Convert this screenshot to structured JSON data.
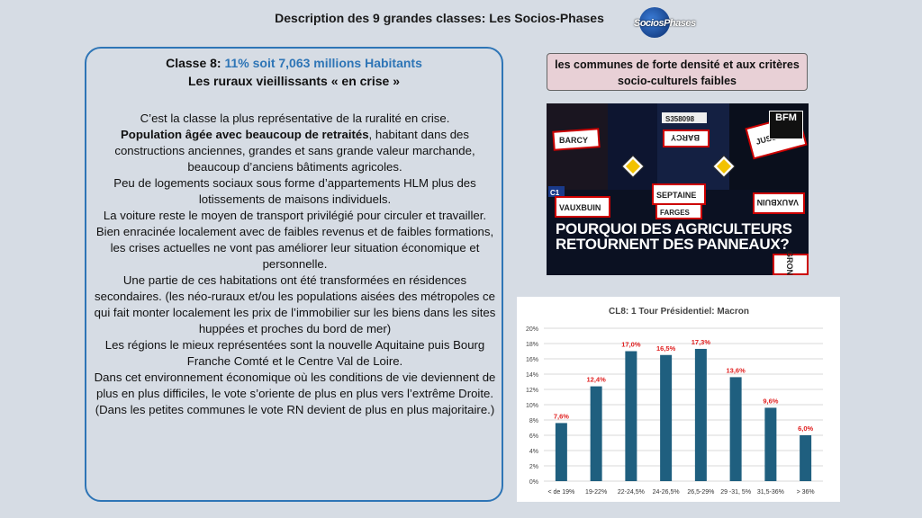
{
  "header": {
    "title": "Description  des  9 grandes  classes:  Les Socios-Phases"
  },
  "logo": {
    "text": "SociosPhases"
  },
  "panel": {
    "title_prefix": "Classe 8: ",
    "title_highlight": "11% soit 7,063 millions Habitants",
    "subtitle": "Les ruraux  vieillissants  « en crise »",
    "p1": "C’est la classe la plus représentative de la ruralité en crise.",
    "p2_bold": "Population âgée avec beaucoup de retraités",
    "p2_rest": ", habitant dans des constructions anciennes, grandes et sans grande valeur marchande, beaucoup d’anciens bâtiments agricoles.",
    "p3": "Peu de logements sociaux sous forme d’appartements HLM plus des lotissements de maisons individuels.",
    "p4": "La voiture reste le moyen de transport privilégié pour circuler et travailler.",
    "p5": "Bien enracinée localement avec de faibles revenus et de faibles formations, les crises actuelles ne vont pas améliorer leur situation économique et personnelle.",
    "p6": "Une partie de ces habitations ont été transformées en résidences secondaires. (les néo-ruraux et/ou les populations aisées des métropoles ce qui fait monter localement les prix de l’immobilier sur les biens dans les sites huppées et proches du bord de mer)",
    "p7": "Les régions le mieux représentées sont la nouvelle Aquitaine puis Bourg Franche Comté et le Centre Val de Loire.",
    "p8": "Dans cet environnement économique où les conditions de vie deviennent de plus en plus difficiles, le vote s’oriente de plus en plus vers l’extrême Droite.",
    "p9": "(Dans les petites communes le vote RN devient de plus en plus majoritaire.)"
  },
  "pinkbox": {
    "text": "les communes de forte densité et aux critères socio-culturels faibles"
  },
  "photo": {
    "headline": "POURQUOI DES AGRICULTEURS RETOURNENT DES PANNEAUX?",
    "badge": "BFM",
    "sign_barcy": "BARCY",
    "sign_fresnes": "FARGES",
    "sign_vauxbuin": "VAUXBUIN",
    "sign_septaine": "SEPTAINE",
    "sign_jussy": "JUSSY",
    "sign_gron": "GRON",
    "sign_c1": "C1",
    "sign_d": "S358098"
  },
  "chart_data": {
    "type": "bar",
    "title": "CL8: 1 Tour Présidentiel: Macron",
    "categories": [
      "< de 19%",
      "19-22%",
      "22-24,5%",
      "24-26,5%",
      "26,5-29%",
      "29 -31, 5%",
      "31,5-36%",
      "> 36%"
    ],
    "values": [
      7.6,
      12.4,
      17.0,
      16.5,
      17.3,
      13.6,
      9.6,
      6.0
    ],
    "data_labels": [
      "7,6%",
      "12,4%",
      "17,0%",
      "16,5%",
      "17,3%",
      "13,6%",
      "9,6%",
      "6,0%"
    ],
    "y_ticks": [
      "0%",
      "2%",
      "4%",
      "6%",
      "8%",
      "10%",
      "12%",
      "14%",
      "16%",
      "18%",
      "20%"
    ],
    "ylim": [
      0,
      20
    ],
    "grid": true,
    "bar_color": "#1f5f7f",
    "label_color": "#e02020"
  }
}
